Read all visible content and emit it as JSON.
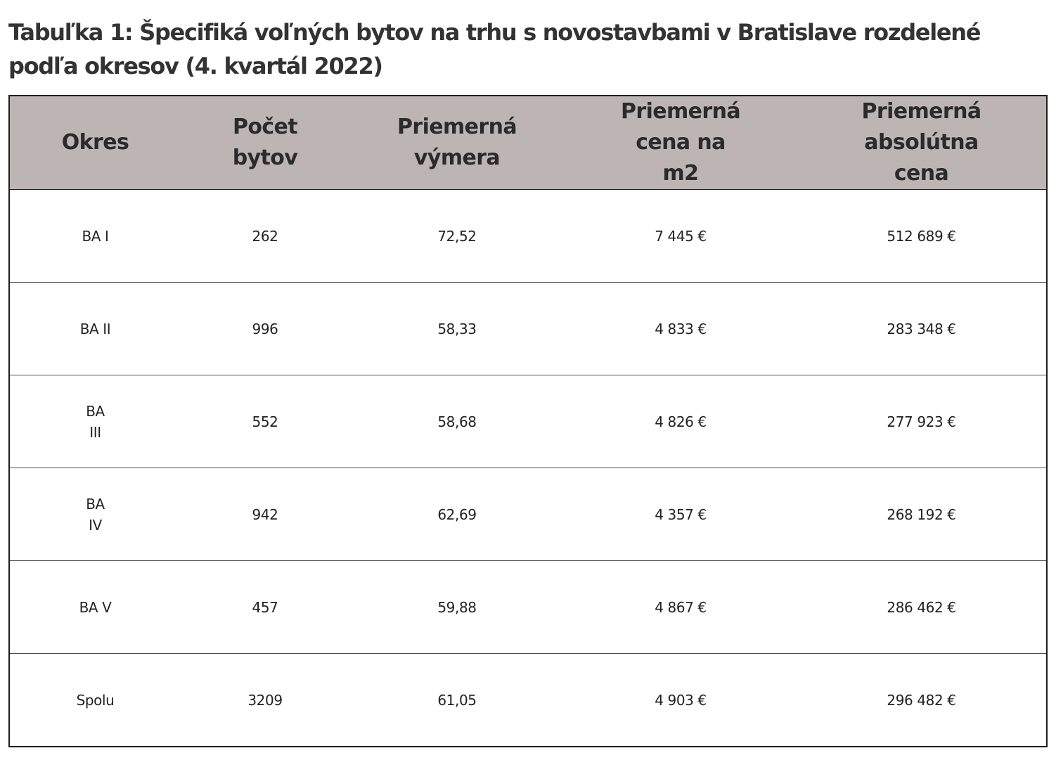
{
  "title": "Tabuľka 1: Špecifiká voľných bytov na trhu s novostavbami v Bratislave rozdelené podľa okresov (4. kvartál 2022)",
  "table": {
    "headers": [
      "Okres",
      "Počet\nbytov",
      "Priemerná\nvýmera",
      "Priemerná\ncena na\nm2",
      "Priemerná\nabsolútna\ncena"
    ],
    "rows": [
      [
        "BA I",
        "262",
        "72,52",
        "7 445 €",
        "512 689 €"
      ],
      [
        "BA II",
        "996",
        "58,33",
        "4 833 €",
        "283 348 €"
      ],
      [
        "BA\nIII",
        "552",
        "58,68",
        "4 826 €",
        "277 923 €"
      ],
      [
        "BA\nIV",
        "942",
        "62,69",
        "4 357 €",
        "268 192 €"
      ],
      [
        "BA V",
        "457",
        "59,88",
        "4 867 €",
        "286 462 €"
      ],
      [
        "Spolu",
        "3209",
        "61,05",
        "4 903 €",
        "296 482 €"
      ]
    ]
  },
  "colors": {
    "header_background": "#bdb5b4",
    "border": "#1e1e1e",
    "title_text": "#333333"
  }
}
